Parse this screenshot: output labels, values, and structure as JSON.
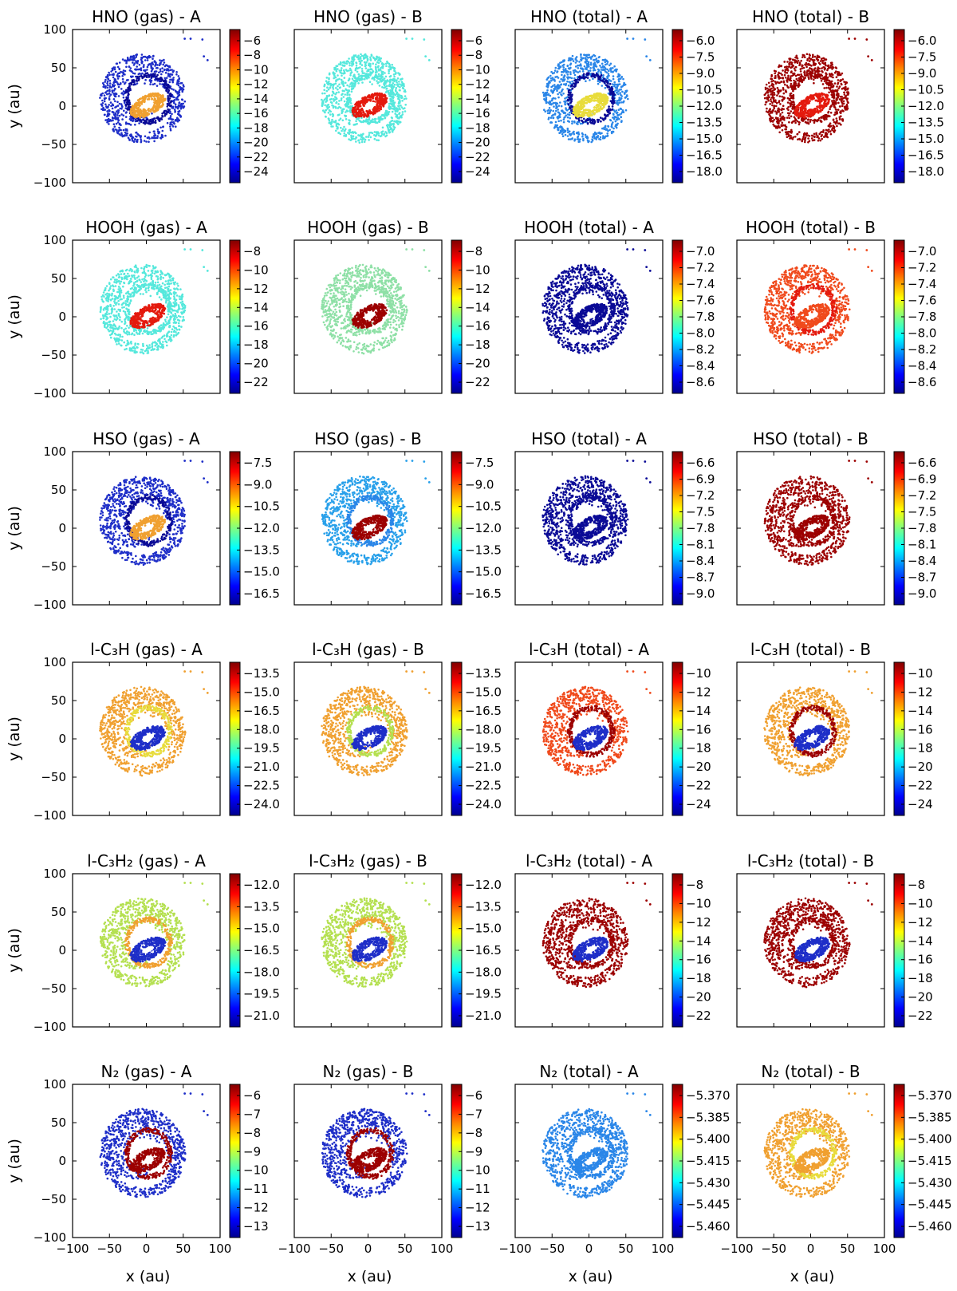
{
  "chart_data": {
    "type": "scatter",
    "layout": "grid of 6 rows x 4 columns",
    "xlabel": "x (au)",
    "ylabel": "y (au)",
    "xlim": [
      -100,
      100
    ],
    "ylim": [
      -100,
      100
    ],
    "x_ticks": [
      "−100",
      "−50",
      "0",
      "50",
      "100"
    ],
    "y_ticks": [
      "100",
      "50",
      "0",
      "−50",
      "−100"
    ],
    "colormap": [
      "#00008f",
      "#0000ff",
      "#0080ff",
      "#00ffff",
      "#80ff80",
      "#ffff00",
      "#ff8000",
      "#ff0000",
      "#800000"
    ],
    "colors": {
      "cyan": "#55e8dc",
      "lightgreen": "#8ee0a6",
      "blue": "#1e2ec8",
      "navy": "#0a0a96",
      "red": "#e41a0e",
      "darkred": "#9c0000",
      "orange": "#f0a030",
      "orangered": "#f04a1c",
      "yellow": "#e8dc3c",
      "sky": "#2a86e8",
      "lime": "#b4e050",
      "mid": "#28a0ea"
    },
    "panels": [
      {
        "title": "HNO (gas) -  A",
        "cbar_ticks": [
          "−6",
          "−8",
          "−10",
          "−12",
          "−14",
          "−16",
          "−18",
          "−20",
          "−22",
          "−24"
        ],
        "outer": "blue",
        "inner": "orange",
        "ring": "navy"
      },
      {
        "title": "HNO (gas) -  B",
        "cbar_ticks": [
          "−6",
          "−8",
          "−10",
          "−12",
          "−14",
          "−16",
          "−18",
          "−20",
          "−22",
          "−24"
        ],
        "outer": "cyan",
        "inner": "red",
        "ring": "cyan"
      },
      {
        "title": "HNO (total) -  A",
        "cbar_ticks": [
          "−6.0",
          "−7.5",
          "−9.0",
          "−10.5",
          "−12.0",
          "−13.5",
          "−15.0",
          "−16.5",
          "−18.0"
        ],
        "outer": "sky",
        "inner": "yellow",
        "ring": "navy"
      },
      {
        "title": "HNO (total) -  B",
        "cbar_ticks": [
          "−6.0",
          "−7.5",
          "−9.0",
          "−10.5",
          "−12.0",
          "−13.5",
          "−15.0",
          "−16.5",
          "−18.0"
        ],
        "outer": "darkred",
        "inner": "red",
        "ring": "darkred"
      },
      {
        "title": "HOOH (gas) -  A",
        "cbar_ticks": [
          "−8",
          "−10",
          "−12",
          "−14",
          "−16",
          "−18",
          "−20",
          "−22"
        ],
        "outer": "cyan",
        "inner": "red",
        "ring": "cyan"
      },
      {
        "title": "HOOH (gas) -  B",
        "cbar_ticks": [
          "−8",
          "−10",
          "−12",
          "−14",
          "−16",
          "−18",
          "−20",
          "−22"
        ],
        "outer": "lightgreen",
        "inner": "darkred",
        "ring": "lightgreen"
      },
      {
        "title": "HOOH (total) -  A",
        "cbar_ticks": [
          "−7.0",
          "−7.2",
          "−7.4",
          "−7.6",
          "−7.8",
          "−8.0",
          "−8.2",
          "−8.4",
          "−8.6"
        ],
        "outer": "navy",
        "inner": "navy",
        "ring": "navy"
      },
      {
        "title": "HOOH (total) -  B",
        "cbar_ticks": [
          "−7.0",
          "−7.2",
          "−7.4",
          "−7.6",
          "−7.8",
          "−8.0",
          "−8.2",
          "−8.4",
          "−8.6"
        ],
        "outer": "orangered",
        "inner": "orangered",
        "ring": "red"
      },
      {
        "title": "HSO (gas) -  A",
        "cbar_ticks": [
          "−7.5",
          "−9.0",
          "−10.5",
          "−12.0",
          "−13.5",
          "−15.0",
          "−16.5"
        ],
        "outer": "blue",
        "inner": "orange",
        "ring": "navy"
      },
      {
        "title": "HSO (gas) -  B",
        "cbar_ticks": [
          "−7.5",
          "−9.0",
          "−10.5",
          "−12.0",
          "−13.5",
          "−15.0",
          "−16.5"
        ],
        "outer": "mid",
        "inner": "darkred",
        "ring": "sky"
      },
      {
        "title": "HSO (total) -  A",
        "cbar_ticks": [
          "−6.6",
          "−6.9",
          "−7.2",
          "−7.5",
          "−7.8",
          "−8.1",
          "−8.4",
          "−8.7",
          "−9.0"
        ],
        "outer": "navy",
        "inner": "navy",
        "ring": "navy"
      },
      {
        "title": "HSO (total) -  B",
        "cbar_ticks": [
          "−6.6",
          "−6.9",
          "−7.2",
          "−7.5",
          "−7.8",
          "−8.1",
          "−8.4",
          "−8.7",
          "−9.0"
        ],
        "outer": "darkred",
        "inner": "darkred",
        "ring": "darkred"
      },
      {
        "title": "l-C₃H (gas) -  A",
        "cbar_ticks": [
          "−13.5",
          "−15.0",
          "−16.5",
          "−18.0",
          "−19.5",
          "−21.0",
          "−22.5",
          "−24.0"
        ],
        "outer": "orange",
        "inner": "blue",
        "ring": "yellow"
      },
      {
        "title": "l-C₃H (gas) -  B",
        "cbar_ticks": [
          "−13.5",
          "−15.0",
          "−16.5",
          "−18.0",
          "−19.5",
          "−21.0",
          "−22.5",
          "−24.0"
        ],
        "outer": "orange",
        "inner": "blue",
        "ring": "lime"
      },
      {
        "title": "l-C₃H (total) -  A",
        "cbar_ticks": [
          "−10",
          "−12",
          "−14",
          "−16",
          "−18",
          "−20",
          "−22",
          "−24"
        ],
        "outer": "orangered",
        "inner": "blue",
        "ring": "darkred"
      },
      {
        "title": "l-C₃H (total) -  B",
        "cbar_ticks": [
          "−10",
          "−12",
          "−14",
          "−16",
          "−18",
          "−20",
          "−22",
          "−24"
        ],
        "outer": "orange",
        "inner": "blue",
        "ring": "darkred"
      },
      {
        "title": "l-C₃H₂ (gas) -  A",
        "cbar_ticks": [
          "−12.0",
          "−13.5",
          "−15.0",
          "−16.5",
          "−18.0",
          "−19.5",
          "−21.0"
        ],
        "outer": "lime",
        "inner": "blue",
        "ring": "orange"
      },
      {
        "title": "l-C₃H₂ (gas) -  B",
        "cbar_ticks": [
          "−12.0",
          "−13.5",
          "−15.0",
          "−16.5",
          "−18.0",
          "−19.5",
          "−21.0"
        ],
        "outer": "lime",
        "inner": "blue",
        "ring": "orange"
      },
      {
        "title": "l-C₃H₂ (total) -  A",
        "cbar_ticks": [
          "−8",
          "−10",
          "−12",
          "−14",
          "−16",
          "−18",
          "−20",
          "−22"
        ],
        "outer": "darkred",
        "inner": "blue",
        "ring": "darkred"
      },
      {
        "title": "l-C₃H₂ (total) -  B",
        "cbar_ticks": [
          "−8",
          "−10",
          "−12",
          "−14",
          "−16",
          "−18",
          "−20",
          "−22"
        ],
        "outer": "darkred",
        "inner": "blue",
        "ring": "darkred"
      },
      {
        "title": "N₂ (gas) -  A",
        "cbar_ticks": [
          "−6",
          "−7",
          "−8",
          "−9",
          "−10",
          "−11",
          "−12",
          "−13"
        ],
        "outer": "blue",
        "inner": "darkred",
        "ring": "darkred"
      },
      {
        "title": "N₂ (gas) -  B",
        "cbar_ticks": [
          "−6",
          "−7",
          "−8",
          "−9",
          "−10",
          "−11",
          "−12",
          "−13"
        ],
        "outer": "blue",
        "inner": "darkred",
        "ring": "darkred"
      },
      {
        "title": "N₂ (total) -  A",
        "cbar_ticks": [
          "−5.370",
          "−5.385",
          "−5.400",
          "−5.415",
          "−5.430",
          "−5.445",
          "−5.460"
        ],
        "outer": "sky",
        "inner": "sky",
        "ring": "sky"
      },
      {
        "title": "N₂ (total) -  B",
        "cbar_ticks": [
          "−5.370",
          "−5.385",
          "−5.400",
          "−5.415",
          "−5.430",
          "−5.445",
          "−5.460"
        ],
        "outer": "orange",
        "inner": "orange",
        "ring": "yellow"
      }
    ]
  }
}
